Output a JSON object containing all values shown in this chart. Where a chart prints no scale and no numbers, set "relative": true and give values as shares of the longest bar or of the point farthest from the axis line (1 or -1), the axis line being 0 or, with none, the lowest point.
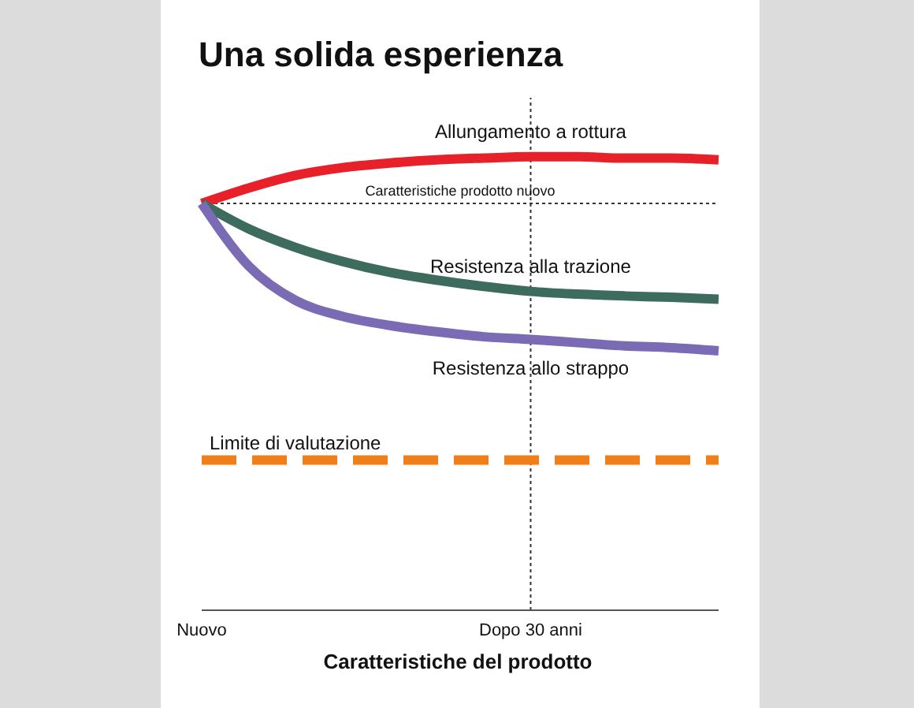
{
  "chart_data": {
    "type": "line",
    "title": "Una solida esperienza",
    "xlabel": "Caratteristiche del prodotto",
    "relative": true,
    "categories": [
      "Nuovo",
      null,
      null,
      null,
      null,
      null,
      null,
      "Dopo 30 anni",
      null,
      null,
      null,
      null
    ],
    "series": [
      {
        "name": "Allungamento a rottura",
        "color": "#e8202a",
        "values": [
          0.897,
          0.931,
          0.959,
          0.976,
          0.986,
          0.993,
          0.997,
          1,
          1,
          0.997,
          0.997,
          0.993
        ]
      },
      {
        "name": "Resistenza alla trazione",
        "color": "#3d6b5e",
        "values": [
          0.897,
          0.841,
          0.8,
          0.769,
          0.745,
          0.728,
          0.714,
          0.703,
          0.697,
          0.693,
          0.69,
          0.686
        ]
      },
      {
        "name": "Resistenza allo strappo",
        "color": "#7b6bb5",
        "values": [
          0.897,
          0.759,
          0.683,
          0.648,
          0.628,
          0.614,
          0.603,
          0.597,
          0.59,
          0.583,
          0.579,
          0.572
        ]
      }
    ],
    "ref_lines": [
      {
        "axis": "y",
        "value": 0.897,
        "label": "Caratteristiche prodotto nuovo",
        "color": "#333333",
        "line_style": "dotted"
      },
      {
        "axis": "x",
        "value": "Dopo 30 anni",
        "label": null,
        "color": "#333333",
        "line_style": "dotted"
      },
      {
        "axis": "y",
        "value": 0.331,
        "label": "Limite di valutazione",
        "color": "#f07f1a",
        "line_style": "dashed"
      }
    ],
    "legend": false,
    "grid": false,
    "marker": "none",
    "line_style": "solid"
  }
}
